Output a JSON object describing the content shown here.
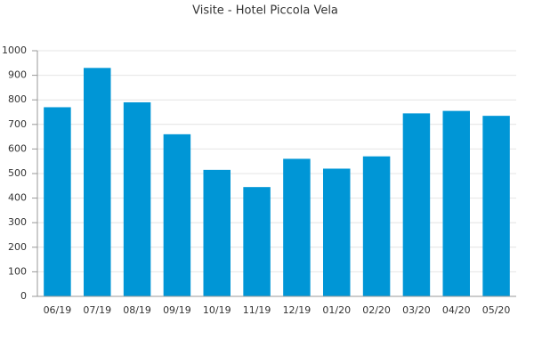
{
  "chart_data": {
    "type": "bar",
    "title": "Visite - Hotel Piccola Vela",
    "categories": [
      "06/19",
      "07/19",
      "08/19",
      "09/19",
      "10/19",
      "11/19",
      "12/19",
      "01/20",
      "02/20",
      "03/20",
      "04/20",
      "05/20"
    ],
    "values": [
      770,
      930,
      790,
      660,
      515,
      445,
      560,
      520,
      570,
      745,
      755,
      735
    ],
    "color": "#0096d6",
    "ylim": [
      0,
      1000
    ],
    "yticks": [
      0,
      100,
      200,
      300,
      400,
      500,
      600,
      700,
      800,
      900,
      1000
    ],
    "grid": true
  }
}
